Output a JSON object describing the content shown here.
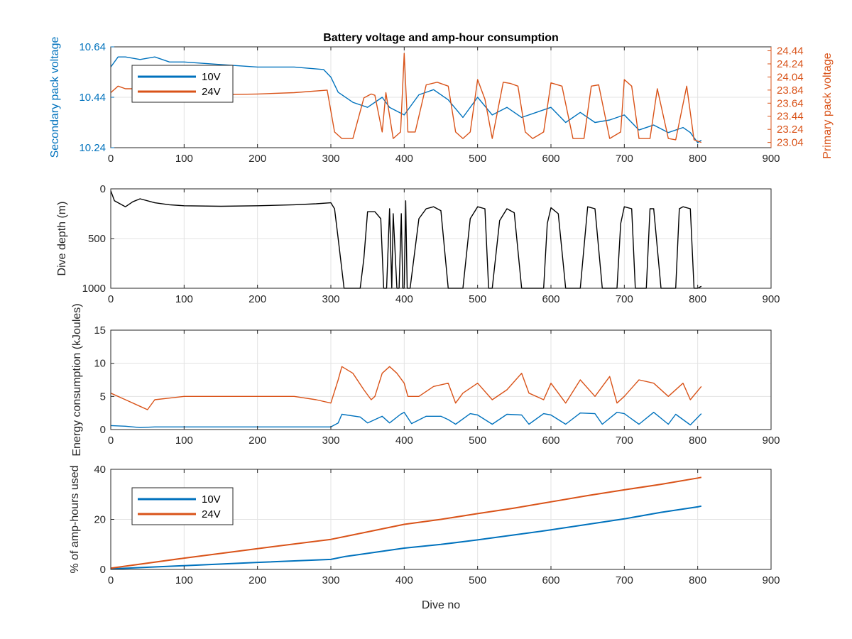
{
  "figure": {
    "title": "Battery voltage and amp-hour consumption"
  },
  "colors": {
    "c10": "#0072BD",
    "c24": "#D95319",
    "depth": "#000000",
    "grid": "#e3e3e3",
    "axis": "#262626"
  },
  "chart_data": [
    {
      "type": "line",
      "title": "Battery voltage and amp-hour consumption",
      "xlabel": "",
      "ylabel": "Secondary pack voltage",
      "ylabel_right": "Primary pack voltage",
      "xlim": [
        0,
        900
      ],
      "ylim": [
        10.24,
        10.64
      ],
      "ylim_right": [
        22.96,
        24.5
      ],
      "xticks": [
        0,
        100,
        200,
        300,
        400,
        500,
        600,
        700,
        800,
        900
      ],
      "yticks": [
        10.24,
        10.44,
        10.64
      ],
      "yticks_right": [
        23.04,
        23.24,
        23.44,
        23.64,
        23.84,
        24.04,
        24.24,
        24.44
      ],
      "grid": true,
      "legend": "top-left",
      "series": [
        {
          "name": "10V",
          "axis": "left",
          "x": [
            0,
            10,
            20,
            40,
            60,
            80,
            100,
            150,
            200,
            250,
            290,
            300,
            310,
            330,
            350,
            370,
            380,
            400,
            420,
            440,
            460,
            480,
            500,
            520,
            540,
            560,
            580,
            600,
            620,
            640,
            660,
            680,
            700,
            720,
            740,
            760,
            780,
            790,
            800,
            805
          ],
          "y": [
            10.56,
            10.6,
            10.6,
            10.59,
            10.6,
            10.58,
            10.58,
            10.57,
            10.56,
            10.56,
            10.55,
            10.52,
            10.46,
            10.42,
            10.4,
            10.44,
            10.4,
            10.37,
            10.45,
            10.47,
            10.43,
            10.36,
            10.44,
            10.37,
            10.4,
            10.36,
            10.38,
            10.4,
            10.34,
            10.38,
            10.34,
            10.35,
            10.37,
            10.31,
            10.33,
            10.3,
            10.32,
            10.3,
            10.26,
            10.27
          ]
        },
        {
          "name": "24V",
          "axis": "right",
          "x": [
            0,
            10,
            20,
            40,
            60,
            80,
            100,
            150,
            200,
            250,
            295,
            305,
            315,
            330,
            345,
            355,
            360,
            370,
            375,
            385,
            395,
            400,
            405,
            415,
            430,
            445,
            460,
            470,
            480,
            490,
            500,
            510,
            520,
            535,
            545,
            555,
            565,
            575,
            590,
            600,
            615,
            630,
            645,
            655,
            665,
            680,
            695,
            700,
            710,
            720,
            735,
            745,
            760,
            770,
            785,
            795,
            805
          ],
          "y": [
            23.8,
            23.9,
            23.86,
            23.86,
            23.87,
            23.8,
            23.8,
            23.77,
            23.78,
            23.8,
            23.84,
            23.2,
            23.1,
            23.1,
            23.72,
            23.78,
            23.76,
            23.2,
            23.8,
            23.1,
            23.2,
            24.4,
            23.2,
            23.2,
            23.92,
            23.96,
            23.9,
            23.2,
            23.1,
            23.2,
            24.0,
            23.7,
            23.1,
            23.96,
            23.94,
            23.9,
            23.2,
            23.1,
            23.2,
            23.95,
            23.9,
            23.1,
            23.1,
            23.9,
            23.92,
            23.1,
            23.2,
            24.0,
            23.9,
            23.1,
            23.1,
            23.86,
            23.1,
            23.08,
            23.9,
            23.08,
            23.04
          ]
        }
      ]
    },
    {
      "type": "line",
      "xlabel": "",
      "ylabel": "Dive depth (m)",
      "xlim": [
        0,
        900
      ],
      "ylim": [
        0,
        1000
      ],
      "y_reversed": true,
      "xticks": [
        0,
        100,
        200,
        300,
        400,
        500,
        600,
        700,
        800,
        900
      ],
      "yticks": [
        0,
        500,
        1000
      ],
      "grid": true,
      "series": [
        {
          "name": "",
          "x": [
            0,
            5,
            20,
            30,
            40,
            60,
            80,
            100,
            150,
            200,
            250,
            280,
            300,
            305,
            310,
            318,
            340,
            345,
            350,
            360,
            368,
            372,
            376,
            380,
            383,
            385,
            390,
            393,
            396,
            398,
            400,
            402,
            404,
            408,
            420,
            430,
            440,
            450,
            460,
            465,
            470,
            480,
            490,
            500,
            510,
            515,
            520,
            530,
            540,
            550,
            560,
            565,
            590,
            595,
            600,
            610,
            620,
            625,
            640,
            650,
            660,
            670,
            690,
            695,
            700,
            710,
            715,
            730,
            735,
            740,
            750,
            770,
            775,
            780,
            790,
            795,
            800,
            805
          ],
          "y": [
            20,
            120,
            180,
            130,
            100,
            140,
            160,
            170,
            175,
            170,
            160,
            150,
            140,
            200,
            500,
            1000,
            1000,
            700,
            230,
            230,
            300,
            1000,
            1000,
            200,
            1000,
            250,
            1000,
            1000,
            250,
            1000,
            1000,
            120,
            1000,
            1000,
            300,
            200,
            180,
            220,
            1000,
            1000,
            1000,
            1000,
            300,
            180,
            200,
            1000,
            1000,
            320,
            200,
            240,
            1000,
            1000,
            1000,
            350,
            190,
            250,
            1000,
            1000,
            1000,
            180,
            200,
            1000,
            1000,
            350,
            180,
            200,
            1000,
            1000,
            200,
            200,
            1000,
            1000,
            200,
            180,
            200,
            1000,
            1000,
            980
          ]
        }
      ]
    },
    {
      "type": "line",
      "xlabel": "",
      "ylabel": "Energy consumption (kJoules)",
      "xlim": [
        0,
        900
      ],
      "ylim": [
        0,
        15
      ],
      "xticks": [
        0,
        100,
        200,
        300,
        400,
        500,
        600,
        700,
        800,
        900
      ],
      "yticks": [
        0,
        5,
        10,
        15
      ],
      "grid": true,
      "series": [
        {
          "name": "10V",
          "x": [
            0,
            20,
            40,
            60,
            100,
            150,
            200,
            250,
            300,
            310,
            315,
            340,
            350,
            370,
            380,
            395,
            400,
            410,
            430,
            450,
            460,
            470,
            490,
            500,
            520,
            540,
            560,
            570,
            590,
            600,
            620,
            640,
            660,
            670,
            690,
            700,
            720,
            740,
            760,
            770,
            790,
            805
          ],
          "y": [
            0.6,
            0.5,
            0.3,
            0.4,
            0.4,
            0.4,
            0.4,
            0.4,
            0.4,
            1.0,
            2.3,
            1.9,
            1.0,
            2.0,
            1.0,
            2.3,
            2.6,
            0.9,
            2.0,
            2.0,
            1.5,
            0.8,
            2.4,
            2.2,
            0.8,
            2.3,
            2.2,
            0.8,
            2.4,
            2.2,
            0.8,
            2.5,
            2.4,
            0.8,
            2.6,
            2.4,
            0.8,
            2.6,
            0.8,
            2.3,
            0.7,
            2.4
          ]
        },
        {
          "name": "24V",
          "x": [
            0,
            20,
            40,
            50,
            60,
            100,
            150,
            200,
            250,
            280,
            300,
            310,
            315,
            330,
            345,
            355,
            360,
            370,
            380,
            390,
            400,
            405,
            420,
            440,
            460,
            470,
            480,
            500,
            520,
            540,
            560,
            570,
            590,
            600,
            620,
            640,
            660,
            680,
            690,
            700,
            720,
            740,
            760,
            780,
            790,
            805
          ],
          "y": [
            5.5,
            4.5,
            3.5,
            3.0,
            4.5,
            5.0,
            5.0,
            5.0,
            5.0,
            4.5,
            4.0,
            7.5,
            9.5,
            8.5,
            6.0,
            4.5,
            5.0,
            8.5,
            9.5,
            8.5,
            7.0,
            5.0,
            5.0,
            6.5,
            7.0,
            4.0,
            5.5,
            7.0,
            4.5,
            6.0,
            8.5,
            5.5,
            4.5,
            7.0,
            4.0,
            7.5,
            5.0,
            8.0,
            4.0,
            5.0,
            7.5,
            7.0,
            5.0,
            7.0,
            4.5,
            6.5
          ]
        }
      ]
    },
    {
      "type": "line",
      "xlabel": "Dive no",
      "ylabel": "% of amp-hours used",
      "xlim": [
        0,
        900
      ],
      "ylim": [
        0,
        40
      ],
      "xticks": [
        0,
        100,
        200,
        300,
        400,
        500,
        600,
        700,
        800,
        900
      ],
      "yticks": [
        0,
        20,
        40
      ],
      "grid": true,
      "legend": "top-left",
      "series": [
        {
          "name": "10V",
          "x": [
            0,
            100,
            200,
            300,
            320,
            350,
            400,
            450,
            500,
            550,
            600,
            650,
            700,
            750,
            800,
            805
          ],
          "y": [
            0.2,
            1.5,
            2.8,
            4.0,
            5.2,
            6.4,
            8.5,
            10.0,
            11.8,
            13.8,
            15.8,
            18.0,
            20.2,
            22.8,
            25.0,
            25.3
          ]
        },
        {
          "name": "24V",
          "x": [
            0,
            100,
            200,
            300,
            330,
            350,
            400,
            450,
            500,
            550,
            600,
            650,
            700,
            750,
            800,
            805
          ],
          "y": [
            0.5,
            4.5,
            8.3,
            12.0,
            13.8,
            15.0,
            18.0,
            20.0,
            22.3,
            24.5,
            27.0,
            29.5,
            31.8,
            34.0,
            36.5,
            36.8
          ]
        }
      ]
    }
  ]
}
